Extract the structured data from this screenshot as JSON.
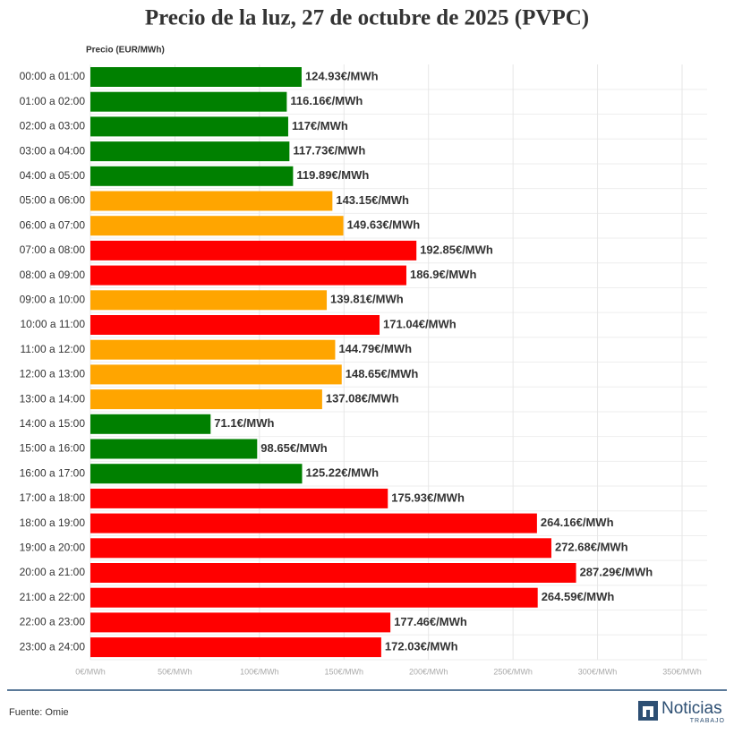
{
  "chart_data": {
    "type": "bar",
    "orientation": "horizontal",
    "title": "Precio de la luz, 27 de octubre de 2025 (PVPC)",
    "x_label": "Precio (EUR/MWh)",
    "categories": [
      "00:00 a 01:00",
      "01:00 a 02:00",
      "02:00 a 03:00",
      "03:00 a 04:00",
      "04:00 a 05:00",
      "05:00 a 06:00",
      "06:00 a 07:00",
      "07:00 a 08:00",
      "08:00 a 09:00",
      "09:00 a 10:00",
      "10:00 a 11:00",
      "11:00 a 12:00",
      "12:00 a 13:00",
      "13:00 a 14:00",
      "14:00 a 15:00",
      "15:00 a 16:00",
      "16:00 a 17:00",
      "17:00 a 18:00",
      "18:00 a 19:00",
      "19:00 a 20:00",
      "20:00 a 21:00",
      "21:00 a 22:00",
      "22:00 a 23:00",
      "23:00 a 24:00"
    ],
    "values": [
      124.93,
      116.16,
      117,
      117.73,
      119.89,
      143.15,
      149.63,
      192.85,
      186.9,
      139.81,
      171.04,
      144.79,
      148.65,
      137.08,
      71.1,
      98.65,
      125.22,
      175.93,
      264.16,
      272.68,
      287.29,
      264.59,
      177.46,
      172.03
    ],
    "value_labels": [
      "124.93€/MWh",
      "116.16€/MWh",
      "117€/MWh",
      "117.73€/MWh",
      "119.89€/MWh",
      "143.15€/MWh",
      "149.63€/MWh",
      "192.85€/MWh",
      "186.9€/MWh",
      "139.81€/MWh",
      "171.04€/MWh",
      "144.79€/MWh",
      "148.65€/MWh",
      "137.08€/MWh",
      "71.1€/MWh",
      "98.65€/MWh",
      "125.22€/MWh",
      "175.93€/MWh",
      "264.16€/MWh",
      "272.68€/MWh",
      "287.29€/MWh",
      "264.59€/MWh",
      "177.46€/MWh",
      "172.03€/MWh"
    ],
    "colors": [
      "#008000",
      "#008000",
      "#008000",
      "#008000",
      "#008000",
      "#ffa500",
      "#ffa500",
      "#ff0000",
      "#ff0000",
      "#ffa500",
      "#ff0000",
      "#ffa500",
      "#ffa500",
      "#ffa500",
      "#008000",
      "#008000",
      "#008000",
      "#ff0000",
      "#ff0000",
      "#ff0000",
      "#ff0000",
      "#ff0000",
      "#ff0000",
      "#ff0000"
    ],
    "xlim": [
      0,
      350
    ],
    "xticks": [
      {
        "value": 0,
        "label": "0€/MWh"
      },
      {
        "value": 50,
        "label": "50€/MWh"
      },
      {
        "value": 100,
        "label": "100€/MWh"
      },
      {
        "value": 150,
        "label": "150€/MWh"
      },
      {
        "value": 200,
        "label": "200€/MWh"
      },
      {
        "value": 250,
        "label": "250€/MWh"
      },
      {
        "value": 300,
        "label": "300€/MWh"
      },
      {
        "value": 350,
        "label": "350€/MWh"
      }
    ],
    "grid": true
  },
  "source": "Fuente: Omie",
  "logo": {
    "name": "Noticias",
    "tagline": "TRABAJO"
  }
}
